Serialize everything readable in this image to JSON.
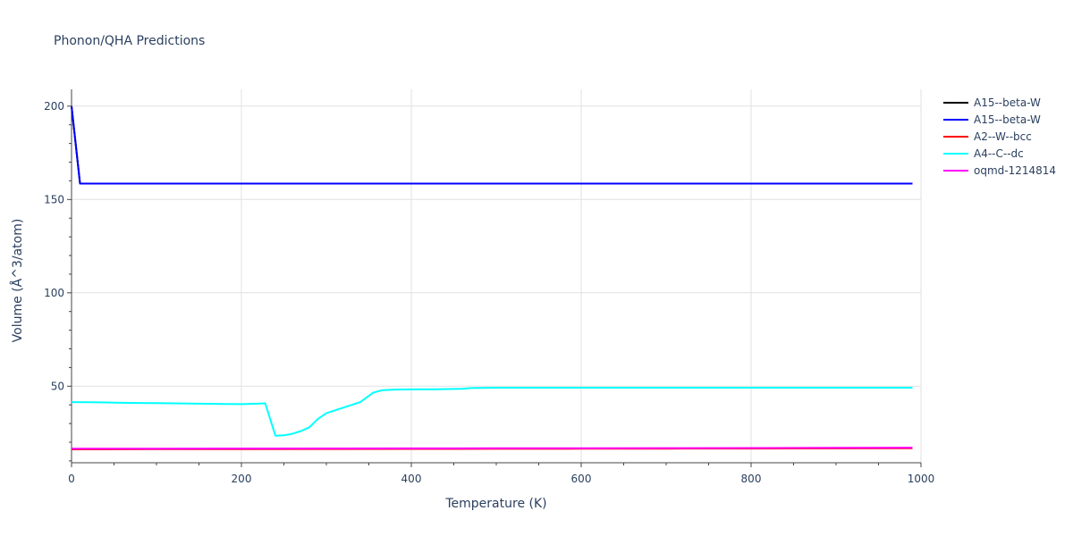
{
  "chart_data": {
    "type": "line",
    "title": "Phonon/QHA Predictions",
    "xlabel": "Temperature (K)",
    "ylabel": "Volume (Å^3/atom)",
    "xlim": [
      0,
      1000
    ],
    "ylim": [
      9,
      209
    ],
    "x_ticks": [
      0,
      200,
      400,
      600,
      800,
      1000
    ],
    "y_ticks": [
      50,
      100,
      150,
      200
    ],
    "grid": true,
    "legend_position": "right",
    "series": [
      {
        "name": "A15--beta-W",
        "color": "#000000",
        "x": [
          0,
          10,
          100,
          200,
          300,
          400,
          500,
          600,
          700,
          800,
          900,
          990
        ],
        "y": [
          200,
          158.5,
          158.5,
          158.5,
          158.5,
          158.5,
          158.5,
          158.5,
          158.5,
          158.5,
          158.5,
          158.5
        ]
      },
      {
        "name": "A15--beta-W",
        "color": "#0000ff",
        "x": [
          0,
          10,
          100,
          200,
          300,
          400,
          500,
          600,
          700,
          800,
          900,
          990
        ],
        "y": [
          200,
          158.5,
          158.5,
          158.5,
          158.5,
          158.5,
          158.5,
          158.5,
          158.5,
          158.5,
          158.5,
          158.5
        ]
      },
      {
        "name": "A2--W--bcc",
        "color": "#ff0000",
        "x": [
          0,
          100,
          200,
          300,
          400,
          500,
          600,
          700,
          800,
          900,
          990
        ],
        "y": [
          16.2,
          16.25,
          16.3,
          16.35,
          16.4,
          16.45,
          16.5,
          16.55,
          16.6,
          16.7,
          16.8
        ]
      },
      {
        "name": "A4--C--dc",
        "color": "#00ffff",
        "x": [
          0,
          20,
          40,
          60,
          80,
          100,
          120,
          140,
          160,
          180,
          200,
          215,
          228,
          240,
          250,
          260,
          270,
          280,
          290,
          300,
          320,
          340,
          355,
          365,
          380,
          400,
          430,
          460,
          470,
          500,
          600,
          700,
          800,
          900,
          990
        ],
        "y": [
          41.5,
          41.4,
          41.3,
          41.1,
          41.0,
          40.9,
          40.8,
          40.7,
          40.6,
          40.5,
          40.4,
          40.6,
          40.8,
          23.5,
          23.7,
          24.5,
          26,
          28,
          32.5,
          35.5,
          38.5,
          41.5,
          46.5,
          47.8,
          48.2,
          48.3,
          48.4,
          48.6,
          49.0,
          49.2,
          49.2,
          49.2,
          49.2,
          49.2,
          49.2
        ]
      },
      {
        "name": "oqmd-1214814",
        "color": "#ff00ff",
        "x": [
          0,
          100,
          200,
          300,
          400,
          500,
          600,
          700,
          800,
          900,
          990
        ],
        "y": [
          16.5,
          16.55,
          16.6,
          16.65,
          16.7,
          16.75,
          16.8,
          16.85,
          16.9,
          17.0,
          17.1
        ]
      }
    ]
  }
}
